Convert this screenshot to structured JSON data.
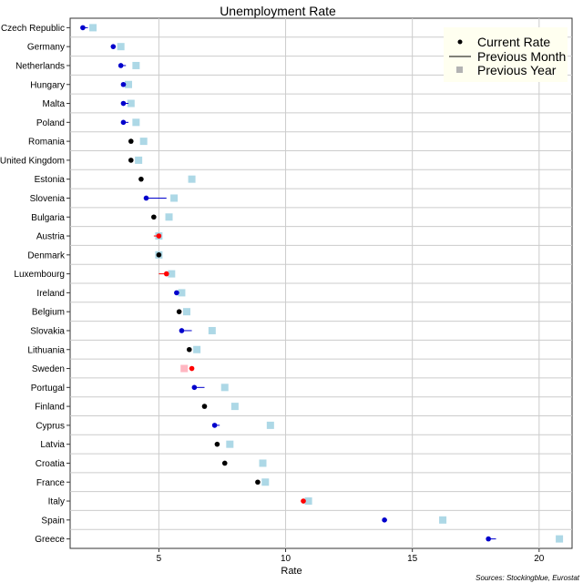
{
  "chart_data": {
    "type": "scatter",
    "title": "Unemployment Rate",
    "xlabel": "Rate",
    "ylabel": "",
    "xlim": [
      1.5,
      21.3
    ],
    "xticks": [
      5,
      10,
      15,
      20
    ],
    "grid": true,
    "legend": {
      "placement": "top-right",
      "entries": [
        "Current Rate",
        "Previous Month",
        "Previous Year"
      ]
    },
    "source": "Sources: Stockingblue, Eurostat",
    "colors": {
      "rate_up": "#ff0000",
      "rate_down": "#0000cc",
      "unchanged": "#000000",
      "prev_year_below": "#add8e6",
      "prev_year_above": "#ffb6c1",
      "grid": "#cccccc",
      "panel": "#ffffff",
      "legend_bg": "#fffff0"
    },
    "categories": [
      "Czech Republic",
      "Germany",
      "Netherlands",
      "Hungary",
      "Malta",
      "Poland",
      "Romania",
      "United Kingdom",
      "Estonia",
      "Slovenia",
      "Bulgaria",
      "Austria",
      "Denmark",
      "Luxembourg",
      "Ireland",
      "Belgium",
      "Slovakia",
      "Lithuania",
      "Sweden",
      "Portugal",
      "Finland",
      "Cyprus",
      "Latvia",
      "Croatia",
      "France",
      "Italy",
      "Spain",
      "Greece"
    ],
    "series": [
      {
        "name": "Current Rate",
        "values": [
          2.0,
          3.2,
          3.5,
          3.6,
          3.6,
          3.6,
          3.9,
          3.9,
          4.3,
          4.5,
          4.8,
          5.0,
          5.0,
          5.3,
          5.7,
          5.8,
          5.9,
          6.2,
          6.3,
          6.4,
          6.8,
          7.2,
          7.3,
          7.6,
          8.9,
          10.7,
          13.9,
          18.0
        ]
      },
      {
        "name": "Previous Month",
        "values": [
          2.2,
          3.3,
          3.7,
          3.7,
          3.8,
          3.8,
          3.9,
          3.9,
          4.3,
          5.3,
          4.8,
          4.8,
          5.0,
          5.0,
          5.8,
          5.8,
          6.3,
          6.2,
          6.2,
          6.8,
          6.8,
          7.4,
          7.3,
          7.6,
          8.9,
          10.6,
          14.0,
          18.3
        ]
      },
      {
        "name": "Previous Year",
        "values": [
          2.4,
          3.5,
          4.1,
          3.8,
          3.9,
          4.1,
          4.4,
          4.2,
          6.3,
          5.6,
          5.4,
          5.0,
          5.0,
          5.5,
          5.9,
          6.1,
          7.1,
          6.5,
          6.0,
          7.6,
          8.0,
          9.4,
          7.8,
          9.1,
          9.2,
          10.9,
          16.2,
          20.8
        ]
      }
    ]
  }
}
